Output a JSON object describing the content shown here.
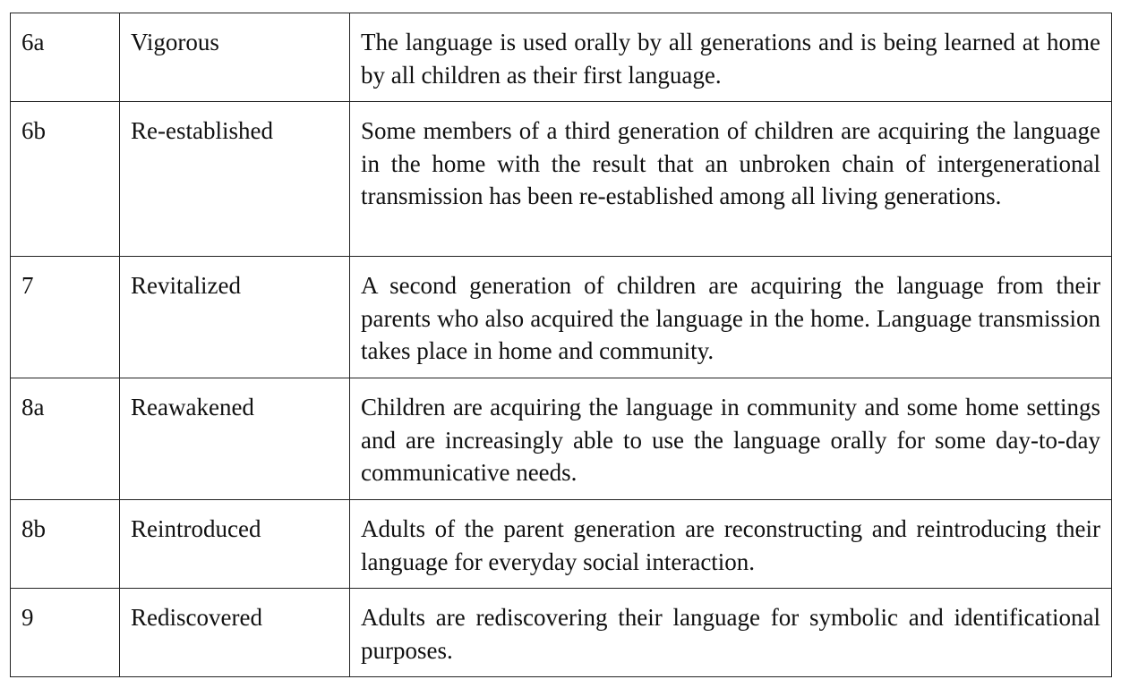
{
  "rows": [
    {
      "level": "6a",
      "label": "Vigorous",
      "description": "The language is used orally by all generations and is being learned at home by all children as their first language."
    },
    {
      "level": "6b",
      "label": "Re-established",
      "description": "Some members of a third generation of children are acquiring the language in the home with the result that an unbroken chain of intergenerational transmission has been re-established among all living generations."
    },
    {
      "level": "7",
      "label": "Revitalized",
      "description": "A second generation of children are acquiring the language from their parents who also acquired the language in the home. Language transmission takes place in home and community."
    },
    {
      "level": "8a",
      "label": "Reawakened",
      "description": "Children are acquiring the language in community and some home settings and are increasingly able to use the language orally for some day-to-day communicative needs."
    },
    {
      "level": "8b",
      "label": "Reintroduced",
      "description": "Adults of the parent generation are reconstructing and reintroducing their language for everyday social interaction."
    },
    {
      "level": "9",
      "label": "Rediscovered",
      "description": "Adults are rediscovering their language for symbolic and identificational purposes."
    }
  ]
}
